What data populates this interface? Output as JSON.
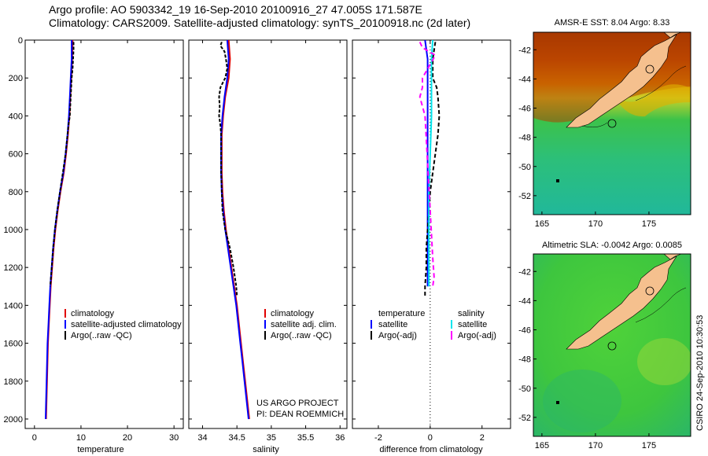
{
  "header": {
    "line1": "Argo profile: AO 5903342_19 16-Sep-2010 20100916_27 47.005S 171.587E",
    "line2": "Climatology: CARS2009. Satellite-adjusted climatology: synTS_20100918.nc (2d later)"
  },
  "colors": {
    "climatology": "#e00000",
    "satellite": "#0000ff",
    "argo": "#000000",
    "salinity_satellite": "#00e5ee",
    "salinity_argo": "#ff00ff"
  },
  "chart_data": [
    {
      "type": "line",
      "name": "temperature-panel",
      "xlabel": "temperature",
      "xlim": [
        -2,
        32
      ],
      "ylim": [
        0,
        2050
      ],
      "xticks": [
        "0",
        "10",
        "20",
        "30"
      ],
      "xtick_values": [
        0,
        10,
        20,
        30
      ],
      "yticks": [
        "0",
        "200",
        "400",
        "600",
        "800",
        "1000",
        "1200",
        "1400",
        "1600",
        "1800",
        "2000"
      ],
      "ytick_values": [
        0,
        200,
        400,
        600,
        800,
        1000,
        1200,
        1400,
        1600,
        1800,
        2000
      ],
      "legend": [
        "climatology",
        "satellite-adjusted climatology",
        "Argo(..raw -QC)"
      ],
      "series": [
        {
          "name": "climatology",
          "pressure": [
            0,
            100,
            200,
            300,
            400,
            500,
            600,
            700,
            800,
            900,
            1000,
            1100,
            1200,
            1300,
            1400,
            1500,
            1600,
            1700,
            1800,
            1900,
            2000
          ],
          "values": [
            8.2,
            8.1,
            7.9,
            7.7,
            7.5,
            7.2,
            6.8,
            6.3,
            5.6,
            5.0,
            4.5,
            4.1,
            3.8,
            3.5,
            3.3,
            3.1,
            2.9,
            2.8,
            2.7,
            2.6,
            2.5
          ]
        },
        {
          "name": "satellite",
          "pressure": [
            0,
            100,
            200,
            300,
            400,
            500,
            600,
            700,
            800,
            900,
            1000,
            1100,
            1200,
            1300,
            1400,
            1500,
            1600,
            1700,
            1800,
            1900,
            2000
          ],
          "values": [
            8.0,
            8.0,
            7.8,
            7.6,
            7.4,
            7.1,
            6.7,
            6.2,
            5.5,
            4.9,
            4.4,
            4.0,
            3.7,
            3.4,
            3.2,
            3.0,
            2.8,
            2.7,
            2.6,
            2.5,
            2.4
          ]
        },
        {
          "name": "argo",
          "pressure": [
            10,
            50,
            100,
            150,
            200,
            250,
            300,
            350,
            400,
            450,
            500,
            600,
            700,
            800,
            900,
            1000,
            1100,
            1200,
            1300
          ],
          "values": [
            8.4,
            8.4,
            8.3,
            8.2,
            8.0,
            7.9,
            7.8,
            7.7,
            7.6,
            7.3,
            7.1,
            6.7,
            6.1,
            5.5,
            4.9,
            4.4,
            4.0,
            3.7,
            3.4
          ]
        }
      ]
    },
    {
      "type": "line",
      "name": "salinity-panel",
      "xlabel": "salinity",
      "xlim": [
        33.8,
        36.1
      ],
      "ylim": [
        0,
        2050
      ],
      "xticks": [
        "34",
        "34.5",
        "35",
        "35.5",
        "36"
      ],
      "xtick_values": [
        34,
        34.5,
        35,
        35.5,
        36
      ],
      "legend": [
        "climatology",
        "satellite adj. clim.",
        "Argo(..raw -QC)"
      ],
      "annotation": [
        "US ARGO PROJECT",
        "PI: DEAN ROEMMICH"
      ],
      "series": [
        {
          "name": "climatology",
          "pressure": [
            0,
            100,
            200,
            300,
            400,
            500,
            600,
            700,
            800,
            900,
            1000,
            1100,
            1200,
            1300,
            1400,
            1500,
            1600,
            1700,
            1800,
            1900,
            2000
          ],
          "values": [
            34.38,
            34.4,
            34.38,
            34.33,
            34.3,
            34.28,
            34.28,
            34.28,
            34.29,
            34.31,
            34.34,
            34.38,
            34.42,
            34.46,
            34.5,
            34.53,
            34.56,
            34.59,
            34.62,
            34.65,
            34.68
          ]
        },
        {
          "name": "satellite",
          "pressure": [
            0,
            100,
            200,
            300,
            400,
            500,
            600,
            700,
            800,
            900,
            1000,
            1100,
            1200,
            1300,
            1400,
            1500,
            1600,
            1700,
            1800,
            1900,
            2000
          ],
          "values": [
            34.36,
            34.38,
            34.36,
            34.32,
            34.29,
            34.27,
            34.27,
            34.27,
            34.28,
            34.3,
            34.33,
            34.37,
            34.41,
            34.45,
            34.49,
            34.52,
            34.55,
            34.58,
            34.61,
            34.64,
            34.67
          ]
        },
        {
          "name": "argo",
          "pressure": [
            10,
            30,
            60,
            100,
            150,
            200,
            250,
            300,
            350,
            400,
            450,
            500,
            600,
            700,
            800,
            900,
            1000,
            1100,
            1200,
            1300,
            1350
          ],
          "values": [
            34.28,
            34.26,
            34.32,
            34.34,
            34.36,
            34.33,
            34.26,
            34.24,
            34.25,
            34.24,
            34.26,
            34.27,
            34.27,
            34.27,
            34.28,
            34.29,
            34.33,
            34.4,
            34.45,
            34.49,
            34.5
          ]
        }
      ]
    },
    {
      "type": "line",
      "name": "difference-panel",
      "xlabel": "difference from climatology",
      "xlim": [
        -3,
        3.1
      ],
      "ylim": [
        0,
        2050
      ],
      "xticks": [
        "-2",
        "0",
        "2"
      ],
      "xtick_values": [
        -2,
        0,
        2
      ],
      "legend_left": {
        "title": "temperature",
        "items": [
          "satellite",
          "Argo(-adj)"
        ]
      },
      "legend_right": {
        "title": "salinity",
        "items": [
          "satellite",
          "Argo(-adj)"
        ]
      },
      "series": [
        {
          "name": "temperature satellite",
          "pressure": [
            0,
            100,
            200,
            400,
            600,
            800,
            1000,
            1200,
            1300
          ],
          "values": [
            -0.2,
            -0.1,
            -0.1,
            -0.1,
            -0.1,
            -0.1,
            -0.1,
            -0.1,
            -0.1
          ]
        },
        {
          "name": "temperature Argo(-adj)",
          "pressure": [
            10,
            100,
            200,
            250,
            300,
            400,
            500,
            600,
            700,
            800,
            900,
            1000,
            1100,
            1200,
            1300,
            1350
          ],
          "values": [
            0.2,
            0.1,
            0.1,
            0.25,
            0.3,
            0.35,
            0.3,
            0.2,
            0.1,
            0.0,
            -0.05,
            -0.1,
            -0.15,
            -0.15,
            -0.2,
            -0.2
          ]
        },
        {
          "name": "salinity satellite",
          "pressure": [
            0,
            100,
            200,
            400,
            600,
            800,
            1000,
            1200,
            1300
          ],
          "values": [
            0.1,
            0.05,
            0.05,
            0.05,
            0.0,
            -0.05,
            -0.05,
            -0.05,
            -0.05
          ]
        },
        {
          "name": "salinity Argo(-adj)",
          "pressure": [
            10,
            40,
            80,
            200,
            250,
            300,
            350,
            400,
            1150,
            1250,
            1300
          ],
          "values": [
            -0.4,
            -0.3,
            0.2,
            -0.3,
            -0.3,
            -0.4,
            -0.3,
            -0.2,
            0.1,
            0.15,
            0.1
          ]
        }
      ]
    },
    {
      "type": "heatmap",
      "name": "sst-map",
      "title": "AMSR-E SST: 8.04 Argo: 8.33",
      "xticks": [
        "165",
        "170",
        "175"
      ],
      "xtick_values": [
        165,
        170,
        175
      ],
      "yticks": [
        "-42",
        "-44",
        "-46",
        "-48",
        "-50",
        "-52"
      ],
      "ytick_values": [
        -42,
        -44,
        -46,
        -48,
        -50,
        -52
      ],
      "xlim": [
        164.2,
        178.9
      ],
      "ylim": [
        -53.3,
        -40.8
      ],
      "argo_position": [
        171.587,
        -47.005
      ]
    },
    {
      "type": "heatmap",
      "name": "sla-map",
      "title": "Altimetric SLA: -0.0042 Argo: 0.0085",
      "xticks": [
        "165",
        "170",
        "175"
      ],
      "xtick_values": [
        165,
        170,
        175
      ],
      "yticks": [
        "-42",
        "-44",
        "-46",
        "-48",
        "-50",
        "-52"
      ],
      "ytick_values": [
        -42,
        -44,
        -46,
        -48,
        -50,
        -52
      ],
      "xlim": [
        164.2,
        178.9
      ],
      "ylim": [
        -53.3,
        -40.8
      ],
      "argo_position": [
        171.587,
        -47.005
      ]
    }
  ],
  "footer_vertical": "CSIRO 24-Sep-2010 10:30:53"
}
